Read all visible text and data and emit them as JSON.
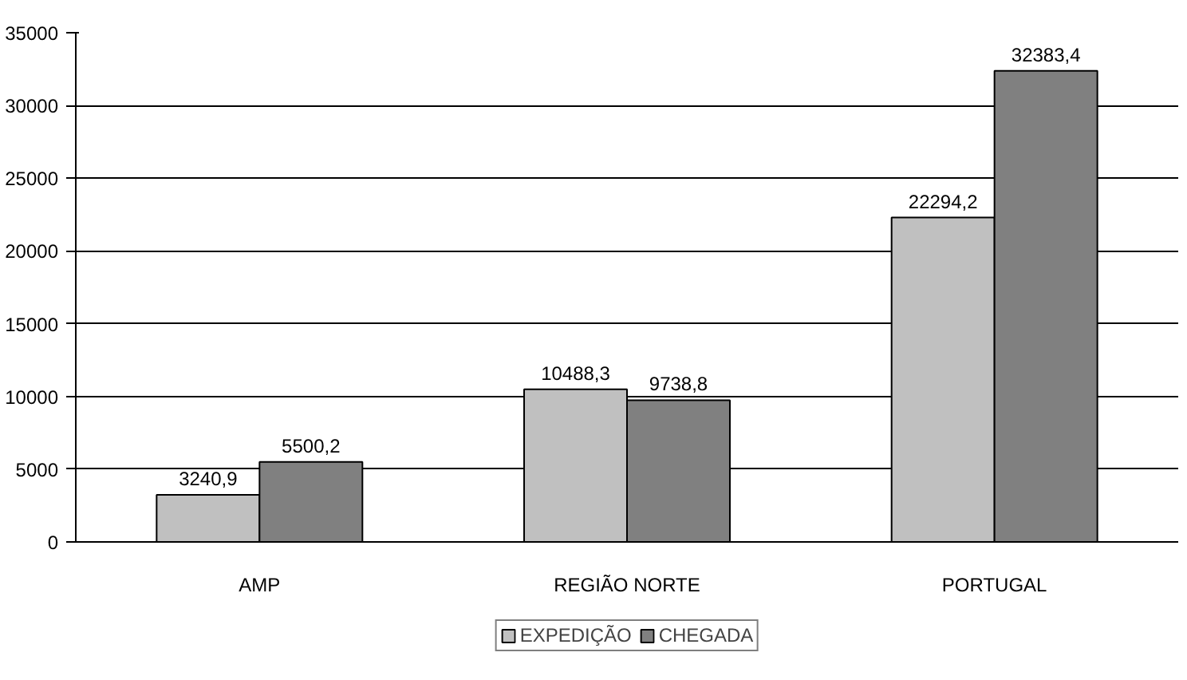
{
  "chart_data": {
    "type": "bar",
    "categories": [
      "AMP",
      "REGIÃO NORTE",
      "PORTUGAL"
    ],
    "series": [
      {
        "name": "EXPEDIÇÃO",
        "color": "#c0c0c0",
        "values": [
          3240.9,
          10488.3,
          22294.2
        ],
        "value_labels": [
          "3240,9",
          "10488,3",
          "22294,2"
        ]
      },
      {
        "name": "CHEGADA",
        "color": "#808080",
        "values": [
          5500.2,
          9738.8,
          32383.4
        ],
        "value_labels": [
          "5500,2",
          "9738,8",
          "32383,4"
        ]
      }
    ],
    "ylim": [
      0,
      35000
    ],
    "yticks": [
      0,
      5000,
      10000,
      15000,
      20000,
      25000,
      30000,
      35000
    ],
    "grid": "y",
    "legend": "bottom"
  }
}
